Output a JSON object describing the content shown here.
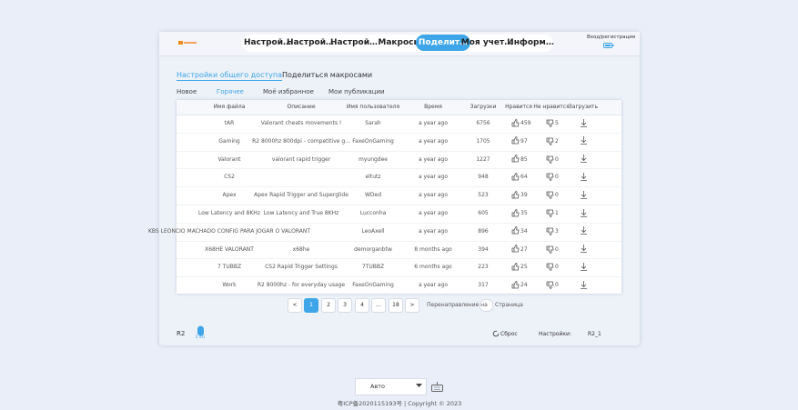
{
  "nav": {
    "login": "Вход/регистрация",
    "items": [
      "Настрой…",
      "Настрой…",
      "Настрой…",
      "Макросы",
      "Поделит…",
      "Моя учет…",
      "Информ…"
    ]
  },
  "tabs": [
    "Настройки общего доступа",
    "Поделиться макросами"
  ],
  "filters": [
    "Новое",
    "Горячее",
    "Моё избранное",
    "Мои публикации"
  ],
  "table": {
    "columns": [
      "Имя файла",
      "Описание",
      "Имя пользователя",
      "Время",
      "Загрузки",
      "Нравится",
      "Не нравится",
      "Загрузить"
    ],
    "rows": [
      [
        "tAR",
        "Valorant cheats movements !",
        "Sarah",
        "a year ago",
        6756,
        459,
        5
      ],
      [
        "Gaming",
        "R2 8000hz 800dpi - competitive g...",
        "FaxeOnGaming",
        "a year ago",
        1705,
        97,
        2
      ],
      [
        "Valorant",
        "valorant rapid trigger",
        "myungdee",
        "a year ago",
        1227,
        85,
        0
      ],
      [
        "CS2",
        null,
        "eltutz",
        "a year ago",
        948,
        64,
        0
      ],
      [
        "Apex",
        "Apex Rapid Trigger and Superglide",
        "WDed",
        "a year ago",
        523,
        39,
        0
      ],
      [
        "Low Latency and 8KHz",
        "Low Latency and True 8KHz",
        "Lucconha",
        "a year ago",
        605,
        35,
        1
      ],
      [
        "KBS LEONCIO MACHADO CONFIG PARA JOGAR O VALORANT",
        null,
        "LeoAxell",
        "a year ago",
        896,
        34,
        3
      ],
      [
        "X68HE VALORANT",
        "x68he",
        "demorganbtw",
        "8 months ago",
        394,
        27,
        0
      ],
      [
        "7 TUBBZ",
        "CS2 Rapid Trigger Settings",
        "7TUBBZ",
        "6 months ago",
        223,
        25,
        0
      ],
      [
        "Work",
        "R2 8000hz - for everyday usage",
        "FaxeOnGaming",
        "a year ago",
        317,
        24,
        0
      ]
    ]
  },
  "pagination": {
    "pages": [
      "<",
      "1",
      "2",
      "3",
      "4",
      "...",
      "18",
      ">"
    ],
    "redirect": "Перенаправление на",
    "page_label": "Страница"
  },
  "device": {
    "name": "R2",
    "badge": "2.4G",
    "reset": "Сброс",
    "settings_label": "Настройки:",
    "settings_value": "R2_1"
  },
  "footer": {
    "language": "Авто",
    "copyright": "粤ICP备2020115193号 | Copyright © 2023"
  }
}
